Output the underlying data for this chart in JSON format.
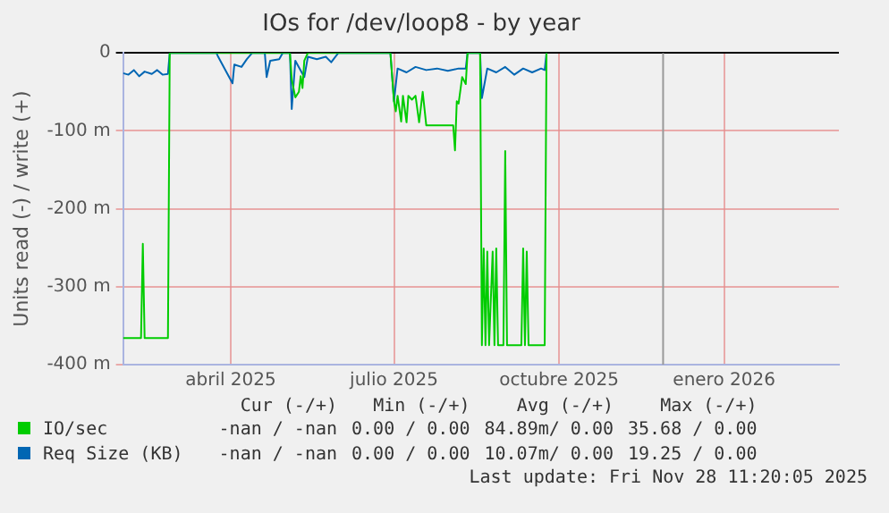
{
  "chart_data": {
    "type": "line",
    "title": "IOs for /dev/loop8 - by year",
    "ylabel": "Units read (-) / write (+)",
    "xlim": [
      "2025-01-31",
      "2026-03-06"
    ],
    "xticks": [
      {
        "value": "2025-04-01",
        "label": "abril 2025"
      },
      {
        "value": "2025-07-01",
        "label": "julio 2025"
      },
      {
        "value": "2025-10-01",
        "label": "octubre 2025"
      },
      {
        "value": "2026-01-01",
        "label": "enero 2026"
      }
    ],
    "ylim": [
      -400,
      0
    ],
    "yticks": [
      0,
      {
        "value": -100,
        "label": "-100 m"
      },
      {
        "value": -200,
        "label": "-200 m"
      },
      {
        "value": -300,
        "label": "-300 m"
      },
      {
        "value": -400,
        "label": "-400 m"
      }
    ],
    "grid": true,
    "legend": "bottom",
    "marker": "none",
    "line_style": "solid",
    "ref_lines": [
      {
        "axis": "x",
        "value": "2025-11-28",
        "color": "#999999"
      }
    ],
    "annotations": [
      "Cur (-/+)",
      "Min (-/+)",
      "Avg (-/+)",
      "Max (-/+)",
      "-nan / -nan",
      "0.00 / 0.00",
      "84.89m/ 0.00",
      "35.68 / 0.00",
      "-nan / -nan",
      "0.00 / 0.00",
      "10.07m/ 0.00",
      "19.25 / 0.00",
      "Last update: Fri Nov 28 11:20:05 2025"
    ],
    "series": [
      {
        "name": "IO/sec",
        "color": "#00cc00",
        "x": [
          "2025-01-31",
          "2025-02-10",
          "2025-02-11",
          "2025-02-12",
          "2025-02-25",
          "2025-02-26",
          "2025-05-04",
          "2025-05-05",
          "2025-05-07",
          "2025-05-09",
          "2025-05-10",
          "2025-05-11",
          "2025-05-12",
          "2025-05-14",
          "2025-06-29",
          "2025-07-01",
          "2025-07-02",
          "2025-07-03",
          "2025-07-05",
          "2025-07-06",
          "2025-07-08",
          "2025-07-09",
          "2025-07-11",
          "2025-07-13",
          "2025-07-15",
          "2025-07-17",
          "2025-07-19",
          "2025-08-03",
          "2025-08-04",
          "2025-08-05",
          "2025-08-06",
          "2025-08-08",
          "2025-08-10",
          "2025-08-11",
          "2025-08-18",
          "2025-08-19",
          "2025-08-20",
          "2025-08-21",
          "2025-08-22",
          "2025-08-23",
          "2025-08-25",
          "2025-08-26",
          "2025-08-27",
          "2025-08-28",
          "2025-08-31",
          "2025-09-01",
          "2025-09-02",
          "2025-09-10",
          "2025-09-11",
          "2025-09-12",
          "2025-09-13",
          "2025-09-14",
          "2025-09-23",
          "2025-09-24"
        ],
        "values": [
          -366,
          -366,
          -245,
          -366,
          -366,
          0,
          0,
          -34,
          -57,
          -50,
          -30,
          -45,
          -10,
          0,
          0,
          -62,
          -75,
          -55,
          -88,
          -55,
          -89,
          -55,
          -60,
          -55,
          -89,
          -50,
          -93,
          -93,
          -125,
          -62,
          -65,
          -31,
          -40,
          0,
          0,
          -375,
          -251,
          -375,
          -255,
          -375,
          -255,
          -375,
          -251,
          -375,
          -375,
          -126,
          -375,
          -375,
          -251,
          -375,
          -255,
          -375,
          -375,
          0
        ]
      },
      {
        "name": "Req Size (KB)",
        "color": "#0066b3",
        "x": [
          "2025-01-31",
          "2025-02-03",
          "2025-02-06",
          "2025-02-09",
          "2025-02-12",
          "2025-02-16",
          "2025-02-19",
          "2025-02-22",
          "2025-02-25",
          "2025-02-26",
          "2025-03-24",
          "2025-03-25",
          "2025-04-02",
          "2025-04-03",
          "2025-04-07",
          "2025-04-10",
          "2025-04-13",
          "2025-04-20",
          "2025-04-21",
          "2025-04-23",
          "2025-04-28",
          "2025-04-30",
          "2025-05-04",
          "2025-05-05",
          "2025-05-07",
          "2025-05-12",
          "2025-05-14",
          "2025-05-19",
          "2025-05-24",
          "2025-05-27",
          "2025-05-31",
          "2025-06-29",
          "2025-07-01",
          "2025-07-03",
          "2025-07-08",
          "2025-07-13",
          "2025-07-19",
          "2025-07-25",
          "2025-07-31",
          "2025-08-06",
          "2025-08-10",
          "2025-08-11",
          "2025-08-18",
          "2025-08-19",
          "2025-08-22",
          "2025-08-27",
          "2025-09-01",
          "2025-09-06",
          "2025-09-11",
          "2025-09-16",
          "2025-09-21",
          "2025-09-23",
          "2025-09-24"
        ],
        "values": [
          -26,
          -28,
          -22,
          -30,
          -24,
          -27,
          -22,
          -28,
          -27,
          0,
          0,
          -5,
          -39,
          -15,
          -18,
          -8,
          0,
          0,
          -31,
          -10,
          -8,
          0,
          0,
          -72,
          -10,
          -31,
          -5,
          -8,
          -5,
          -12,
          0,
          0,
          -62,
          -20,
          -25,
          -18,
          -22,
          -20,
          -23,
          -20,
          -20,
          0,
          0,
          -58,
          -20,
          -25,
          -18,
          -28,
          -20,
          -25,
          -20,
          -22,
          0
        ]
      }
    ]
  }
}
